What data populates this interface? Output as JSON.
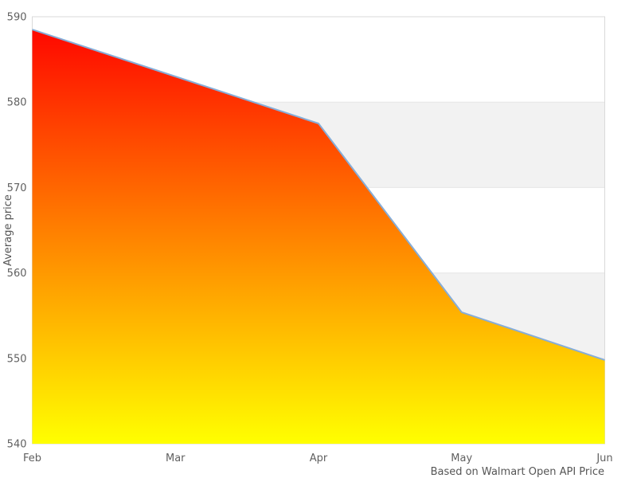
{
  "chart_data": {
    "type": "area",
    "title": "",
    "categories": [
      "Feb",
      "Mar",
      "Apr",
      "May",
      "Jun"
    ],
    "values": [
      588.5,
      583.0,
      577.5,
      555.4,
      549.8
    ],
    "xlabel": "",
    "ylabel": "Average price",
    "ylim": [
      540,
      590
    ],
    "ytick_interval": 10,
    "yticks": [
      540,
      550,
      560,
      570,
      580,
      590
    ],
    "caption": "Based on Walmart Open API Price",
    "legend": "none",
    "grid": "alternating horizontal plot bands",
    "colors": {
      "line": "#86add8",
      "area_gradient_top": "#ff0000",
      "area_gradient_bottom": "#ffff00",
      "band_fill": "#f2f2f2",
      "grid_line": "#e6e6e6",
      "plot_border": "#d9d9d9",
      "tick_label": "#606060",
      "axis_title": "#555555",
      "caption_color": "#555555",
      "background": "#ffffff"
    }
  }
}
